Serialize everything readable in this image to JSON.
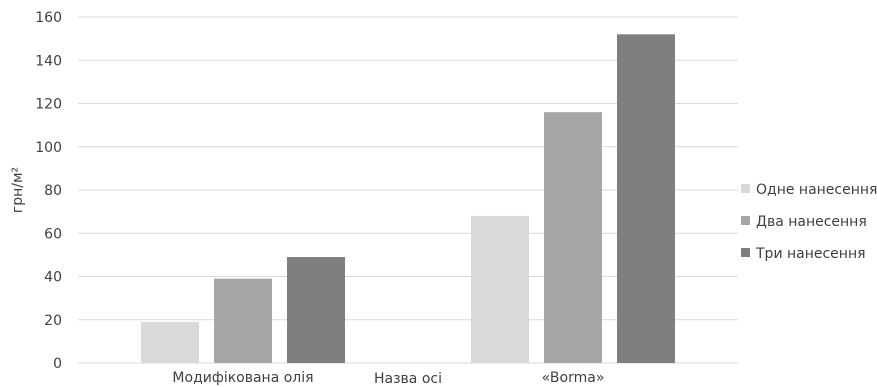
{
  "chart_data": {
    "type": "bar",
    "categories": [
      "Модифікована олія",
      "«Borma»"
    ],
    "series": [
      {
        "name": "Одне нанесення",
        "values": [
          19,
          68
        ],
        "color": "#d9d9d9"
      },
      {
        "name": "Два нанесення",
        "values": [
          39,
          116
        ],
        "color": "#a6a6a6"
      },
      {
        "name": "Три нанесення",
        "values": [
          49,
          152
        ],
        "color": "#7f7f7f"
      }
    ],
    "ylabel": "грн/м²",
    "xlabel": "Назва осі",
    "ylim": [
      0,
      160
    ],
    "yticks": [
      0,
      20,
      40,
      60,
      80,
      100,
      120,
      140,
      160
    ],
    "grid": true,
    "legend": "right"
  }
}
